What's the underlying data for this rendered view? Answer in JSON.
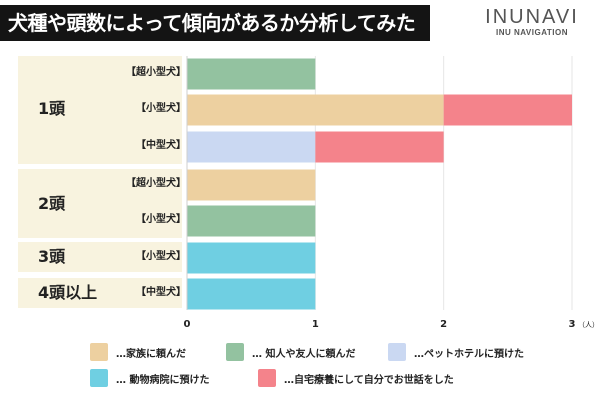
{
  "header": {
    "title": "犬種や頭数によって傾向があるか分析してみた",
    "logo_main": "INUNAVI",
    "logo_sub": "INU NAVIGATION"
  },
  "chart_data": {
    "type": "bar",
    "orientation": "horizontal",
    "stacked": true,
    "title": "犬種や頭数によって傾向があるか分析してみた",
    "groups": [
      {
        "label": "1頭",
        "categories": [
          "【超小型犬】",
          "【小型犬】",
          "【中型犬】"
        ]
      },
      {
        "label": "2頭",
        "categories": [
          "【超小型犬】",
          "【小型犬】"
        ]
      },
      {
        "label": "3頭",
        "categories": [
          "【小型犬】"
        ]
      },
      {
        "label": "4頭以上",
        "categories": [
          "【中型犬】"
        ]
      }
    ],
    "categories": [
      "1頭 【超小型犬】",
      "1頭 【小型犬】",
      "1頭 【中型犬】",
      "2頭 【超小型犬】",
      "2頭 【小型犬】",
      "3頭 【小型犬】",
      "4頭以上 【中型犬】"
    ],
    "series": [
      {
        "name": "…家族に頼んだ",
        "color": "#edd0a0",
        "values": [
          0,
          2,
          0,
          1,
          0,
          0,
          0
        ]
      },
      {
        "name": "… 知人や友人に頼んだ",
        "color": "#93c2a0",
        "values": [
          1,
          0,
          0,
          0,
          1,
          0,
          0
        ]
      },
      {
        "name": "…ペットホテルに預けた",
        "color": "#cad8f2",
        "values": [
          0,
          0,
          1,
          0,
          0,
          0,
          0
        ]
      },
      {
        "name": "… 動物病院に預けた",
        "color": "#6fcfe2",
        "values": [
          0,
          0,
          0,
          0,
          0,
          1,
          1
        ]
      },
      {
        "name": "…自宅療養にして自分でお世話をした",
        "color": "#f4838b",
        "values": [
          0,
          1,
          1,
          0,
          0,
          0,
          0
        ]
      }
    ],
    "xlim": [
      0,
      3
    ],
    "xticks": [
      "0",
      "1",
      "2",
      "3"
    ],
    "xunit": "（人）",
    "grid": true,
    "legend": "bottom"
  }
}
